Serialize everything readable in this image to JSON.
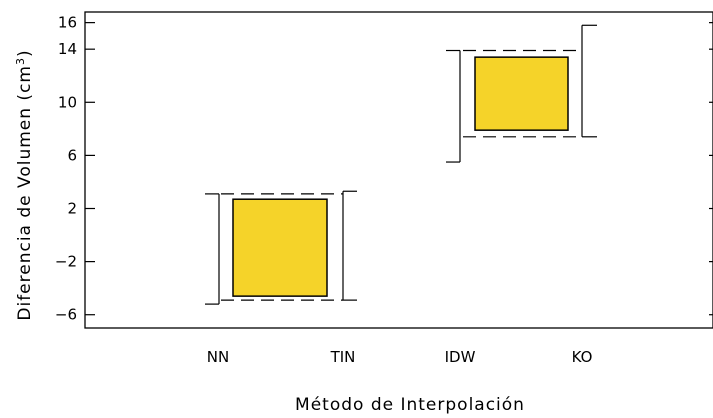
{
  "chart_data": {
    "type": "box",
    "xlabel": "Método de Interpolación",
    "ylabel": "Diferencia de Volumen (cm³)",
    "ylabel_main": "Diferencia de Volumen (cm",
    "ylabel_sup": "3",
    "ylabel_close": ")",
    "ylim": [
      -7,
      16.8
    ],
    "yticks": [
      16,
      14,
      10,
      6,
      2,
      -2,
      -6
    ],
    "ytick_labels": [
      "16",
      "14",
      "10",
      "6",
      "2",
      "−2",
      "−6"
    ],
    "categories": [
      "NN",
      "TIN",
      "IDW",
      "KO"
    ],
    "groups": [
      {
        "categories": [
          "NN",
          "TIN"
        ],
        "box": {
          "low": -4.6,
          "high": 2.7
        },
        "dashed": {
          "low": -4.9,
          "high": 3.1
        },
        "left_whisker": {
          "low": -5.2,
          "high": 3.1
        },
        "right_whisker": {
          "low": -4.9,
          "high": 3.3
        }
      },
      {
        "categories": [
          "IDW",
          "KO"
        ],
        "box": {
          "low": 7.9,
          "high": 13.4
        },
        "dashed": {
          "low": 7.4,
          "high": 13.9
        },
        "left_whisker": {
          "low": 5.5,
          "high": 13.9
        },
        "right_whisker": {
          "low": 7.4,
          "high": 15.8
        }
      }
    ],
    "box_color": "#f5d329",
    "grid": false
  }
}
